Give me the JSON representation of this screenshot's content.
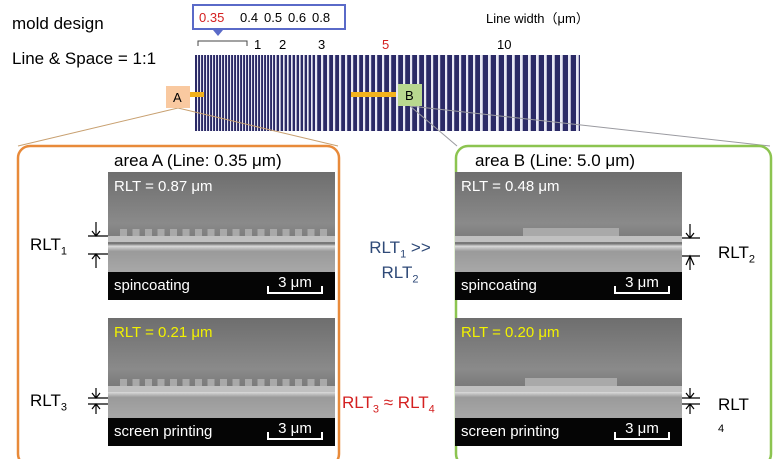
{
  "header": {
    "title": "mold design",
    "ratio": "Line & Space = 1:1",
    "axis_label": "Line width（μm）"
  },
  "fine_widths": [
    "0.35",
    "0.4",
    "0.5",
    "0.6",
    "0.8"
  ],
  "coarse_widths": [
    "1",
    "2",
    "3",
    "5",
    "10"
  ],
  "markers": {
    "a": "A",
    "b": "B"
  },
  "panels": [
    {
      "title": "area A (Line: 0.35 μm)",
      "images": [
        {
          "rlt": "RLT = 0.87 μm",
          "method": "spincoating",
          "scale": "3 μm"
        },
        {
          "rlt": "RLT = 0.21 μm",
          "method": "screen printing",
          "scale": "3 μm"
        }
      ],
      "labels": [
        {
          "base": "RLT",
          "sub": "1"
        },
        {
          "base": "RLT",
          "sub": "3"
        }
      ]
    },
    {
      "title": "area B (Line: 5.0 μm)",
      "images": [
        {
          "rlt": "RLT = 0.48 μm",
          "method": "spincoating",
          "scale": "3 μm"
        },
        {
          "rlt": "RLT = 0.20 μm",
          "method": "screen printing",
          "scale": "3 μm"
        }
      ],
      "labels": [
        {
          "base": "RLT",
          "sub": "2"
        },
        {
          "base": "RLT",
          "sub": "4"
        }
      ]
    }
  ],
  "comparisons": [
    {
      "left": {
        "base": "RLT",
        "sub": "1"
      },
      "op": ">>",
      "right": {
        "base": "RLT",
        "sub": "2"
      }
    },
    {
      "left": {
        "base": "RLT",
        "sub": "3"
      },
      "op": "≈",
      "right": {
        "base": "RLT",
        "sub": "4"
      }
    }
  ]
}
